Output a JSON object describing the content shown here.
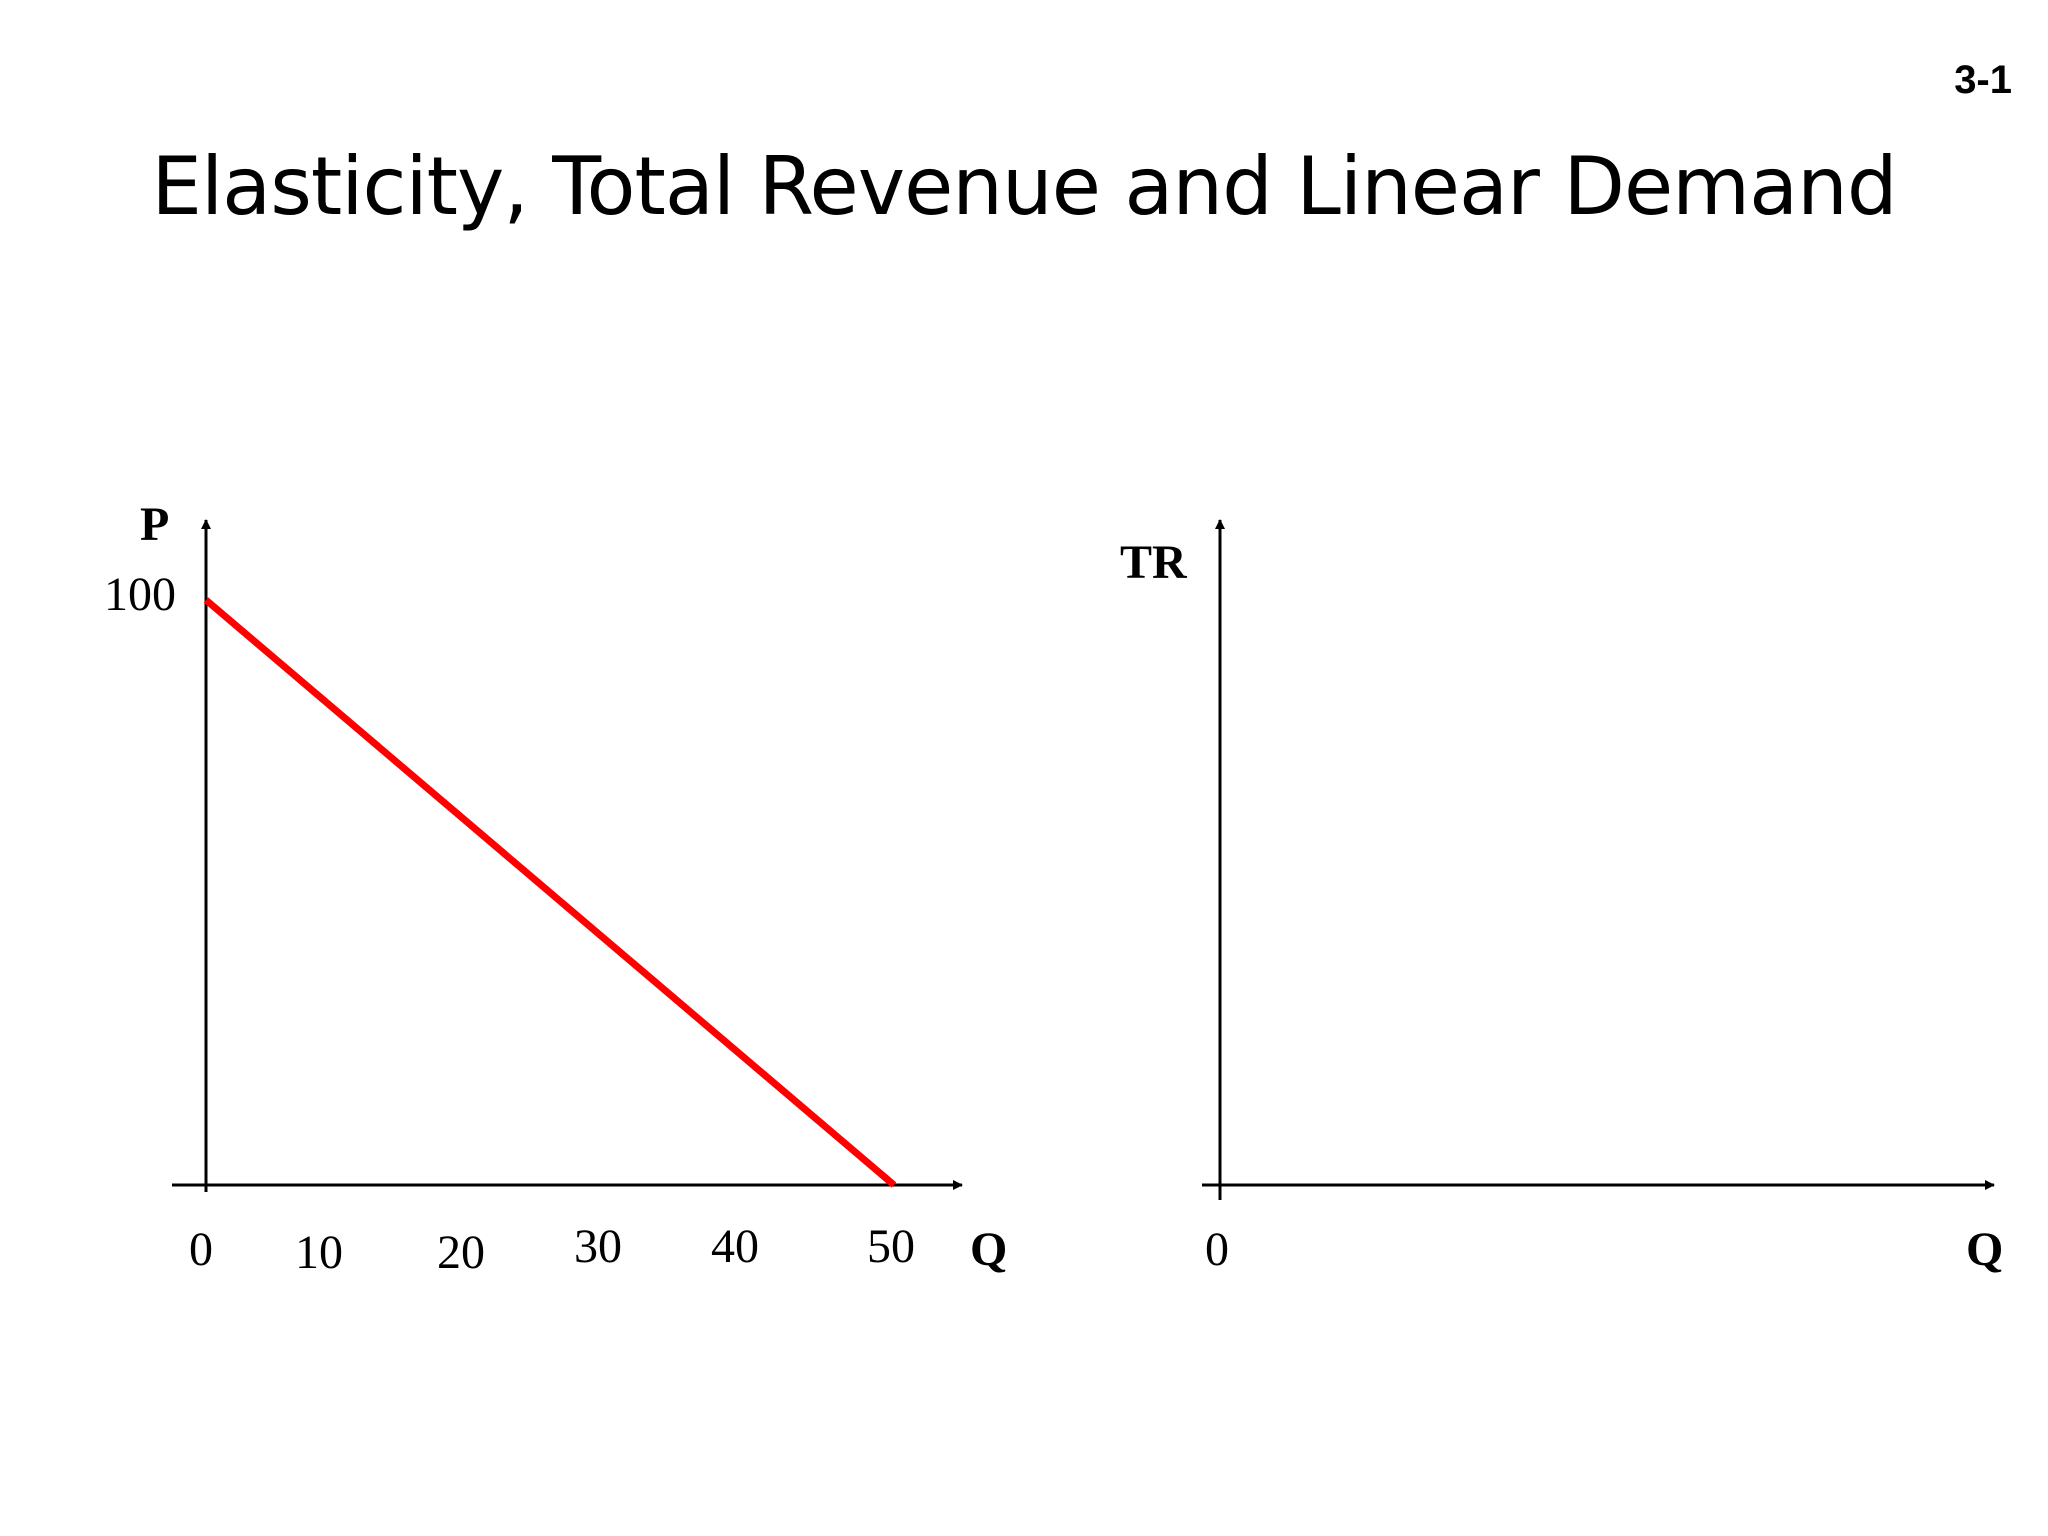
{
  "slide": {
    "number": "3-1",
    "title": "Elasticity, Total Revenue and Linear Demand"
  },
  "chart_data": [
    {
      "type": "line",
      "ylabel": "P",
      "xlabel": "Q",
      "x_ticks": [
        "0",
        "10",
        "20",
        "30",
        "40",
        "50"
      ],
      "y_ticks": [
        "100"
      ],
      "xlim": [
        0,
        55
      ],
      "ylim": [
        0,
        112
      ],
      "series": [
        {
          "x": [
            0,
            50
          ],
          "y": [
            100,
            0
          ],
          "color": "#ff0000"
        }
      ]
    },
    {
      "type": "line",
      "ylabel": "TR",
      "xlabel": "Q",
      "x_ticks": [
        "0"
      ],
      "y_ticks": [],
      "series": []
    }
  ]
}
